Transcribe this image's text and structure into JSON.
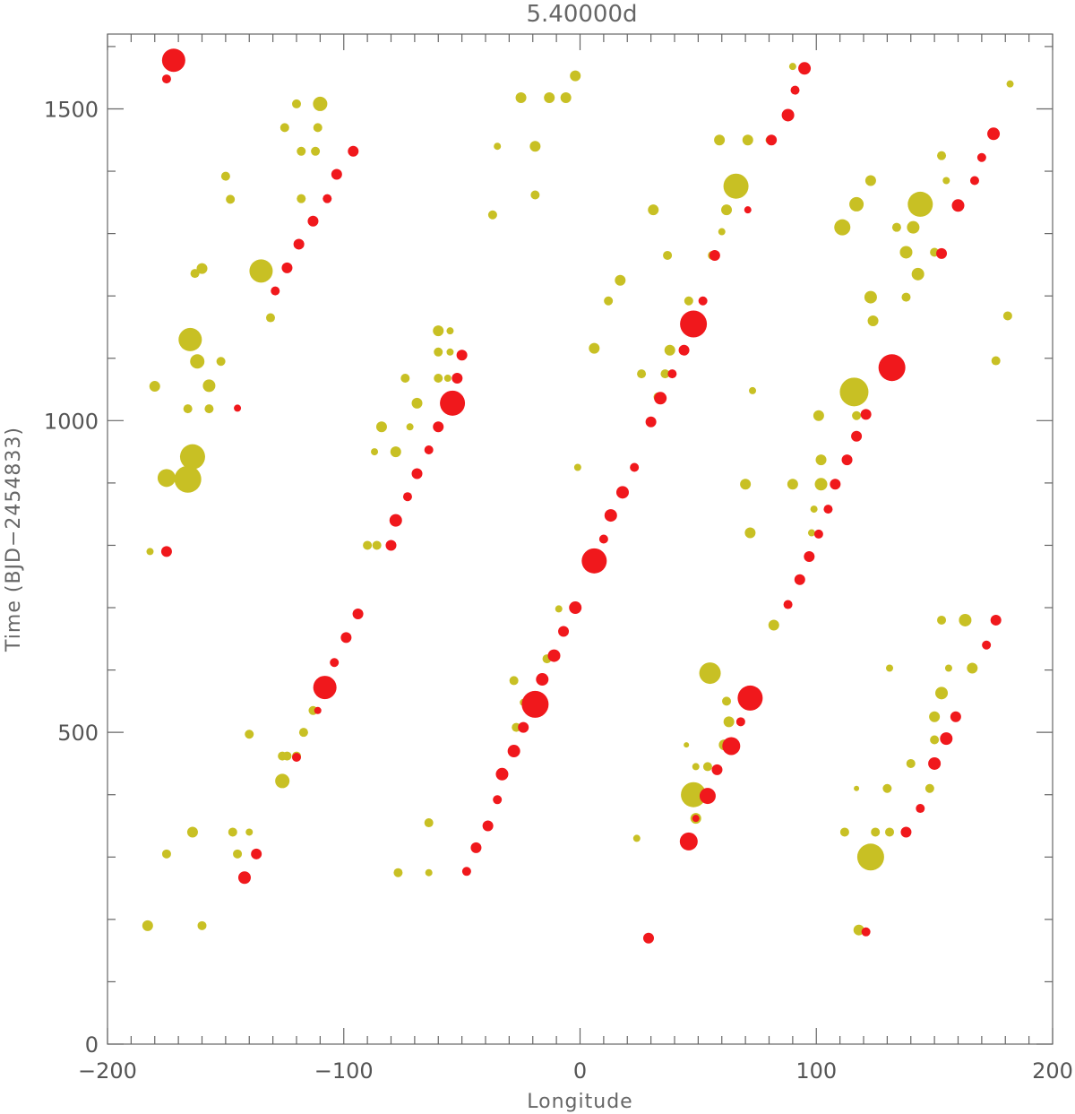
{
  "chart_data": {
    "type": "scatter",
    "title": "5.40000d",
    "xlabel": "Longitude",
    "ylabel": "Time (BJD−2454833)",
    "xlim": [
      -200,
      200
    ],
    "ylim": [
      0,
      1620
    ],
    "xticks": [
      -200,
      -100,
      0,
      100,
      200
    ],
    "xtick_labels": [
      "−200",
      "−100",
      "0",
      "100",
      "200"
    ],
    "yticks": [
      0,
      500,
      1000,
      1500
    ],
    "ytick_labels": [
      "0",
      "500",
      "1000",
      "1500"
    ],
    "x_minor_step": 10,
    "y_minor_step": 100,
    "grid": false,
    "legend": "none",
    "series": [
      {
        "color": "#c8c024",
        "points": [
          [
            -110,
            1508,
            8
          ],
          [
            -120,
            1508,
            5
          ],
          [
            -125,
            1470,
            5
          ],
          [
            -111,
            1470,
            5
          ],
          [
            -118,
            1432,
            5
          ],
          [
            -112,
            1432,
            5
          ],
          [
            -150,
            1392,
            5
          ],
          [
            -148,
            1355,
            5
          ],
          [
            -118,
            1356,
            5
          ],
          [
            -135,
            1240,
            13
          ],
          [
            -160,
            1244,
            6
          ],
          [
            -163,
            1236,
            5
          ],
          [
            -131,
            1165,
            5
          ],
          [
            -165,
            1130,
            13
          ],
          [
            -162,
            1095,
            8
          ],
          [
            -152,
            1095,
            5
          ],
          [
            -180,
            1055,
            6
          ],
          [
            -157,
            1056,
            7
          ],
          [
            -166,
            1019,
            5
          ],
          [
            -157,
            1019,
            5
          ],
          [
            -164,
            942,
            14
          ],
          [
            -175,
            908,
            10
          ],
          [
            -166,
            906,
            15
          ],
          [
            -182,
            790,
            4
          ],
          [
            -140,
            497,
            5
          ],
          [
            -126,
            462,
            5
          ],
          [
            -124,
            462,
            5
          ],
          [
            -120,
            462,
            5
          ],
          [
            -126,
            422,
            8
          ],
          [
            -117,
            500,
            5
          ],
          [
            -113,
            535,
            5
          ],
          [
            -164,
            340,
            6
          ],
          [
            -147,
            340,
            5
          ],
          [
            -140,
            340,
            4
          ],
          [
            -145,
            305,
            5
          ],
          [
            -175,
            305,
            5
          ],
          [
            -183,
            190,
            6
          ],
          [
            -160,
            190,
            5
          ],
          [
            -90,
            800,
            5
          ],
          [
            -86,
            800,
            5
          ],
          [
            -84,
            990,
            6
          ],
          [
            -78,
            950,
            6
          ],
          [
            -74,
            1068,
            5
          ],
          [
            -72,
            990,
            4
          ],
          [
            -87,
            950,
            4
          ],
          [
            -69,
            1028,
            6
          ],
          [
            -60,
            1144,
            6
          ],
          [
            -60,
            1110,
            5
          ],
          [
            -60,
            1068,
            5
          ],
          [
            -55,
            1144,
            4
          ],
          [
            -55,
            1110,
            4
          ],
          [
            -56,
            1068,
            4
          ],
          [
            -54,
            1028,
            5
          ],
          [
            -64,
            355,
            5
          ],
          [
            -64,
            275,
            4
          ],
          [
            -77,
            275,
            5
          ],
          [
            -37,
            1330,
            5
          ],
          [
            -35,
            1440,
            4
          ],
          [
            -25,
            1518,
            6
          ],
          [
            -19,
            1440,
            6
          ],
          [
            -19,
            1362,
            5
          ],
          [
            -13,
            1518,
            6
          ],
          [
            -6,
            1518,
            6
          ],
          [
            -2,
            1553,
            6
          ],
          [
            -1,
            925,
            4
          ],
          [
            -9,
            698,
            4
          ],
          [
            -7,
            660,
            4
          ],
          [
            -14,
            618,
            5
          ],
          [
            -28,
            583,
            5
          ],
          [
            -24,
            548,
            4
          ],
          [
            -27,
            508,
            5
          ],
          [
            -33,
            433,
            5
          ],
          [
            6,
            1116,
            6
          ],
          [
            12,
            1192,
            5
          ],
          [
            17,
            1225,
            6
          ],
          [
            24,
            330,
            4
          ],
          [
            26,
            1075,
            5
          ],
          [
            31,
            1338,
            6
          ],
          [
            30,
            998,
            4
          ],
          [
            33,
            1038,
            5
          ],
          [
            36,
            1075,
            5
          ],
          [
            37,
            1265,
            5
          ],
          [
            38,
            1113,
            6
          ],
          [
            46,
            1192,
            5
          ],
          [
            45,
            480,
            3
          ],
          [
            49,
            445,
            4
          ],
          [
            48,
            400,
            14
          ],
          [
            49,
            362,
            6
          ],
          [
            55,
            595,
            12
          ],
          [
            56,
            1265,
            5
          ],
          [
            59,
            1450,
            6
          ],
          [
            60,
            1303,
            4
          ],
          [
            62,
            1338,
            6
          ],
          [
            63,
            517,
            6
          ],
          [
            61,
            480,
            6
          ],
          [
            62,
            550,
            5
          ],
          [
            54,
            445,
            5
          ],
          [
            66,
            1376,
            14
          ],
          [
            71,
            1450,
            6
          ],
          [
            73,
            1048,
            4
          ],
          [
            70,
            898,
            6
          ],
          [
            72,
            820,
            6
          ],
          [
            80,
            1450,
            4
          ],
          [
            82,
            672,
            6
          ],
          [
            90,
            1568,
            4
          ],
          [
            90,
            898,
            6
          ],
          [
            101,
            1008,
            6
          ],
          [
            102,
            937,
            6
          ],
          [
            102,
            898,
            7
          ],
          [
            99,
            858,
            4
          ],
          [
            98,
            820,
            4
          ],
          [
            111,
            1310,
            9
          ],
          [
            117,
            1347,
            8
          ],
          [
            117,
            1008,
            5
          ],
          [
            112,
            340,
            5
          ],
          [
            123,
            1385,
            6
          ],
          [
            123,
            1198,
            7
          ],
          [
            124,
            1160,
            6
          ],
          [
            116,
            1046,
            16
          ],
          [
            123,
            300,
            15
          ],
          [
            118,
            183,
            6
          ],
          [
            117,
            410,
            3
          ],
          [
            125,
            340,
            5
          ],
          [
            130,
            410,
            5
          ],
          [
            131,
            340,
            5
          ],
          [
            131,
            603,
            4
          ],
          [
            134,
            1310,
            5
          ],
          [
            138,
            1270,
            7
          ],
          [
            138,
            1198,
            5
          ],
          [
            143,
            1235,
            7
          ],
          [
            141,
            1310,
            7
          ],
          [
            144,
            1347,
            14
          ],
          [
            150,
            1270,
            5
          ],
          [
            148,
            410,
            5
          ],
          [
            140,
            450,
            5
          ],
          [
            149,
            450,
            4
          ],
          [
            150,
            488,
            5
          ],
          [
            153,
            1425,
            5
          ],
          [
            155,
            1385,
            4
          ],
          [
            150,
            525,
            6
          ],
          [
            153,
            563,
            7
          ],
          [
            156,
            603,
            4
          ],
          [
            153,
            680,
            5
          ],
          [
            163,
            680,
            7
          ],
          [
            166,
            603,
            6
          ],
          [
            176,
            1096,
            5
          ],
          [
            181,
            1168,
            5
          ],
          [
            182,
            1540,
            4
          ]
        ]
      },
      {
        "color": "#f0181c",
        "points": [
          [
            -172,
            1578,
            13
          ],
          [
            -175,
            1548,
            5
          ],
          [
            -96,
            1432,
            6
          ],
          [
            -103,
            1395,
            6
          ],
          [
            -107,
            1356,
            5
          ],
          [
            -113,
            1320,
            6
          ],
          [
            -119,
            1283,
            6
          ],
          [
            -124,
            1245,
            6
          ],
          [
            -129,
            1208,
            5
          ],
          [
            -145,
            1020,
            4
          ],
          [
            -175,
            790,
            6
          ],
          [
            -94,
            690,
            6
          ],
          [
            -99,
            652,
            6
          ],
          [
            -104,
            612,
            5
          ],
          [
            -108,
            572,
            13
          ],
          [
            -111,
            535,
            4
          ],
          [
            -120,
            460,
            5
          ],
          [
            -137,
            305,
            6
          ],
          [
            -142,
            267,
            7
          ],
          [
            -50,
            1105,
            6
          ],
          [
            -52,
            1068,
            6
          ],
          [
            -54,
            1028,
            14
          ],
          [
            -60,
            990,
            6
          ],
          [
            -64,
            953,
            5
          ],
          [
            -69,
            915,
            6
          ],
          [
            -73,
            878,
            5
          ],
          [
            -78,
            840,
            7
          ],
          [
            -80,
            800,
            6
          ],
          [
            -48,
            277,
            5
          ],
          [
            -44,
            315,
            6
          ],
          [
            -39,
            350,
            6
          ],
          [
            -35,
            392,
            5
          ],
          [
            -33,
            433,
            7
          ],
          [
            -28,
            470,
            7
          ],
          [
            -24,
            508,
            6
          ],
          [
            -19,
            545,
            15
          ],
          [
            -16,
            585,
            7
          ],
          [
            -11,
            623,
            7
          ],
          [
            -7,
            662,
            6
          ],
          [
            -2,
            700,
            7
          ],
          [
            6,
            775,
            14
          ],
          [
            10,
            810,
            5
          ],
          [
            13,
            848,
            7
          ],
          [
            18,
            885,
            7
          ],
          [
            23,
            925,
            5
          ],
          [
            29,
            170,
            6
          ],
          [
            30,
            998,
            6
          ],
          [
            34,
            1036,
            7
          ],
          [
            39,
            1075,
            5
          ],
          [
            44,
            1113,
            6
          ],
          [
            48,
            1155,
            15
          ],
          [
            52,
            1192,
            5
          ],
          [
            57,
            1265,
            6
          ],
          [
            49,
            362,
            4
          ],
          [
            46,
            325,
            10
          ],
          [
            54,
            398,
            9
          ],
          [
            58,
            440,
            6
          ],
          [
            64,
            478,
            10
          ],
          [
            68,
            517,
            5
          ],
          [
            72,
            555,
            14
          ],
          [
            71,
            1338,
            4
          ],
          [
            81,
            1450,
            6
          ],
          [
            88,
            1490,
            7
          ],
          [
            91,
            1530,
            5
          ],
          [
            95,
            1565,
            7
          ],
          [
            88,
            705,
            5
          ],
          [
            93,
            745,
            6
          ],
          [
            97,
            782,
            6
          ],
          [
            101,
            818,
            5
          ],
          [
            105,
            858,
            5
          ],
          [
            108,
            898,
            6
          ],
          [
            113,
            937,
            6
          ],
          [
            117,
            975,
            6
          ],
          [
            121,
            1010,
            6
          ],
          [
            132,
            1085,
            15
          ],
          [
            121,
            180,
            5
          ],
          [
            138,
            340,
            6
          ],
          [
            144,
            378,
            5
          ],
          [
            150,
            450,
            7
          ],
          [
            155,
            490,
            7
          ],
          [
            159,
            525,
            6
          ],
          [
            153,
            1268,
            6
          ],
          [
            160,
            1345,
            7
          ],
          [
            167,
            1385,
            5
          ],
          [
            170,
            1422,
            5
          ],
          [
            175,
            1460,
            7
          ],
          [
            172,
            640,
            5
          ],
          [
            176,
            680,
            6
          ]
        ]
      }
    ]
  }
}
